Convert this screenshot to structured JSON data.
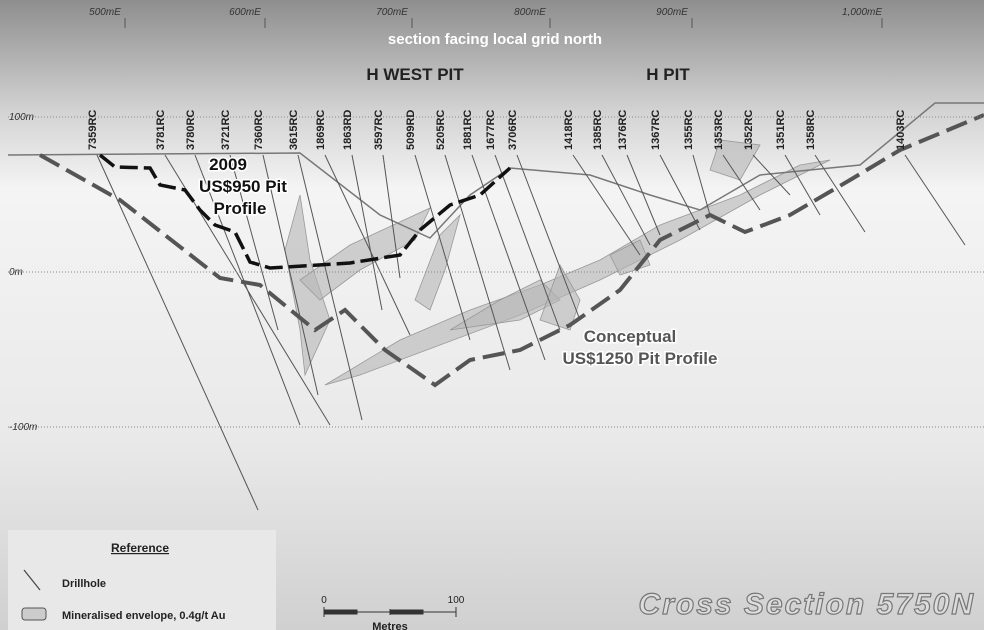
{
  "header": {
    "subtitle": "section facing local grid north",
    "pits": [
      "H WEST PIT",
      "H PIT"
    ]
  },
  "eastings": [
    "500mE",
    "600mE",
    "700mE",
    "800mE",
    "900mE",
    "1,000mE"
  ],
  "elevations": [
    "100m",
    "0m",
    "-100m"
  ],
  "drillholes": [
    "7359RC",
    "3781RC",
    "3780RC",
    "3721RC",
    "7360RC",
    "3615RC",
    "1869RC",
    "1863RD",
    "3597RC",
    "5099RD",
    "5205RC",
    "1881RC",
    "1677RC",
    "3706RC",
    "1418RC",
    "1385RC",
    "1376RC",
    "1367RC",
    "1355RC",
    "1353RC",
    "1352RC",
    "1351RC",
    "1358RC",
    "1403RC"
  ],
  "profiles": {
    "pit_2009": [
      "2009",
      "US$950 Pit",
      "Profile"
    ],
    "conceptual": [
      "Conceptual",
      "US$1250 Pit Profile"
    ]
  },
  "legend": {
    "title": "Reference",
    "items": [
      "Drillhole",
      "Mineralised envelope, 0.4g/t Au"
    ]
  },
  "scale_bar": {
    "start": "0",
    "end": "100",
    "unit": "Metres"
  },
  "title": "Cross Section 5750N"
}
